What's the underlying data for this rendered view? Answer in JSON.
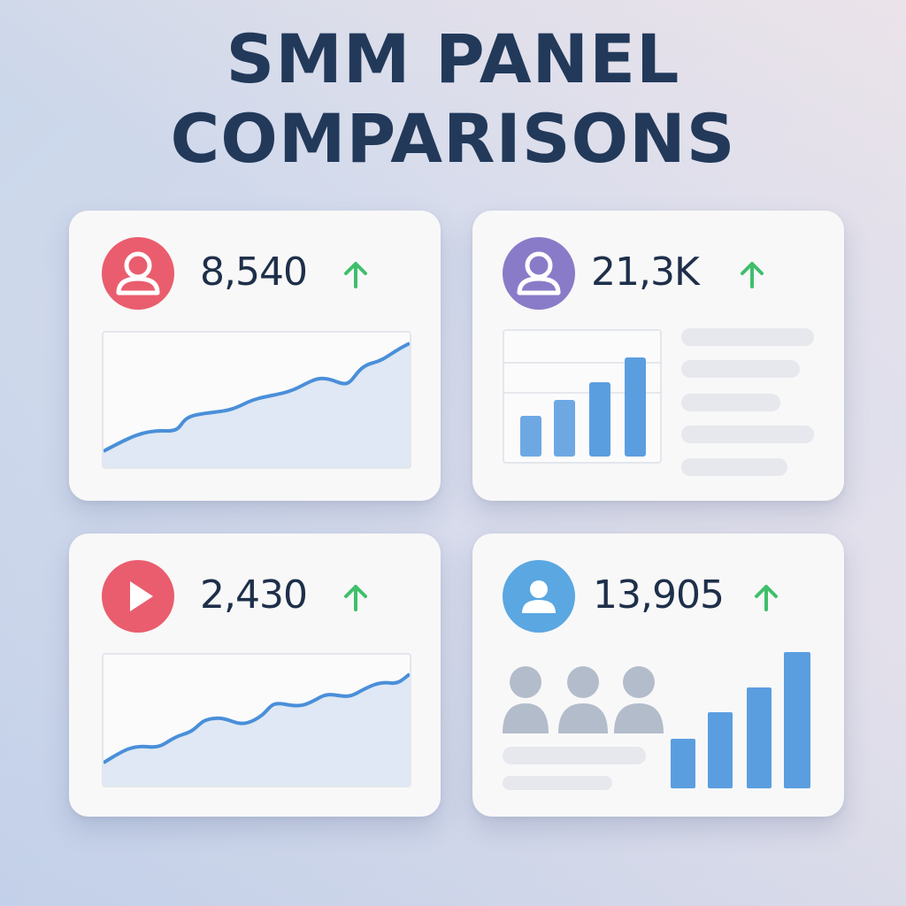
{
  "title": {
    "line1": "SMM PANEL",
    "line2": "COMPARISONS"
  },
  "colors": {
    "title": "#22395a",
    "red_avatar": "#ea5d6e",
    "purple_avatar": "#8a7bc8",
    "blue_avatar": "#5aa7e2",
    "trend_up": "#3fbf6b",
    "line": "#4a8fd9",
    "bar": "#5b9ee0"
  },
  "cards": [
    {
      "stat": "8,540",
      "icon": "user-icon",
      "trend": "up-arrow-icon"
    },
    {
      "stat": "21,3K",
      "icon": "user-icon",
      "trend": "up-arrow-icon"
    },
    {
      "stat": "2,430",
      "icon": "play-icon",
      "trend": "up-arrow-icon"
    },
    {
      "stat": "13,905",
      "icon": "user-icon",
      "trend": "up-arrow-icon"
    }
  ]
}
